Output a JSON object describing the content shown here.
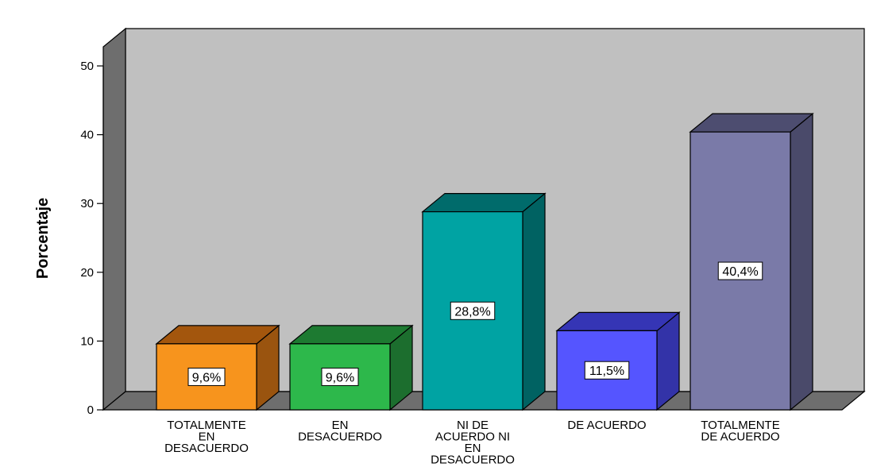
{
  "chart_data": {
    "type": "bar",
    "title": "",
    "xlabel": "",
    "ylabel": "Porcentaje",
    "ylim": [
      0,
      50
    ],
    "yticks": [
      0,
      10,
      20,
      30,
      40,
      50
    ],
    "grid": false,
    "style": "3d",
    "categories": [
      [
        "TOTALMENTE",
        "EN",
        "DESACUERDO"
      ],
      [
        "EN",
        "DESACUERDO"
      ],
      [
        "NI DE",
        "ACUERDO NI",
        "EN",
        "DESACUERDO"
      ],
      [
        "DE ACUERDO"
      ],
      [
        "TOTALMENTE",
        "DE ACUERDO"
      ]
    ],
    "values": [
      9.6,
      9.6,
      28.8,
      11.5,
      40.4
    ],
    "data_labels": [
      "9,6%",
      "9,6%",
      "28,8%",
      "11,5%",
      "40,4%"
    ],
    "colors": [
      {
        "front": "#f7941d",
        "top": "#a3560d",
        "side": "#9a540f"
      },
      {
        "front": "#2db84b",
        "top": "#1d7a31",
        "side": "#1c6e2e"
      },
      {
        "front": "#00a3a3",
        "top": "#006b6b",
        "side": "#006262"
      },
      {
        "front": "#5555ff",
        "top": "#3535b5",
        "side": "#3333a8"
      },
      {
        "front": "#7a7aa8",
        "top": "#4d4d70",
        "side": "#4a4a6a"
      }
    ],
    "plot_background": "#c0c0c0"
  }
}
